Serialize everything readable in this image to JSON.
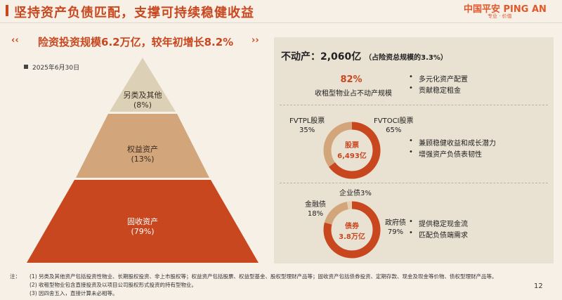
{
  "header": {
    "title": "坚持资产负债匹配，支撑可持续稳健收益",
    "logo_main": "中国平安 PING AN",
    "logo_sub": "专业 · 价值"
  },
  "left": {
    "headline_chev_left": "‹‹",
    "headline": "险资投资规模6.2万亿，较年初增长8.2%",
    "headline_chev_right": "››",
    "date": "2025年6月30日",
    "pyramid": [
      {
        "name": "另类及其他",
        "pct": "(8%)",
        "color": "#dcd0b6"
      },
      {
        "name": "权益资产",
        "pct": "(13%)",
        "color": "#d3a57a"
      },
      {
        "name": "固收资产",
        "pct": "(79%)",
        "color": "#c9471f"
      }
    ]
  },
  "right": {
    "real_estate": {
      "title": "不动产：2,060亿",
      "title_note": "（占险资总规模的3.3%）",
      "pct": "82%",
      "desc": "收租型物业占不动产规模",
      "bullets": [
        "多元化资产配置",
        "贡献稳定租金"
      ]
    },
    "stocks": {
      "left_name": "FVTPL股票",
      "left_pct": "35%",
      "right_name": "FVTOCI股票",
      "right_pct": "65%",
      "center_label": "股票",
      "center_value": "6,493亿",
      "bullets": [
        "兼顾稳健收益和成长潜力",
        "增强资产负债表韧性"
      ],
      "share": 0.65
    },
    "bonds": {
      "corp": "企业债3%",
      "fin_name": "金融债",
      "fin_pct": "18%",
      "gov_name": "政府债",
      "gov_pct": "79%",
      "center_label": "债券",
      "center_value": "3.8万亿",
      "bullets": [
        "提供稳定现金流",
        "匹配负债端需求"
      ],
      "shares": [
        0.79,
        0.18,
        0.03
      ]
    }
  },
  "footnotes": {
    "lead": "注：",
    "items": [
      "(1)  另类及其他资产包括投资性物业、长期股权投资、非上市股权等；权益资产包括股票、权益型基金、股权型理财产品等；固收资产包括债券投资、定期存款、现金及现金等价物、债权型理财产品等。",
      "(2)  收租型物业包含直接投资及以项目公司股权形式投资的持有型物业。",
      "(3)  因四舍五入，直接计算未必相等。"
    ],
    "page_number": "12"
  },
  "colors": {
    "accent": "#c9471f",
    "tan": "#d3a57a",
    "panel": "#e9e1d2"
  }
}
